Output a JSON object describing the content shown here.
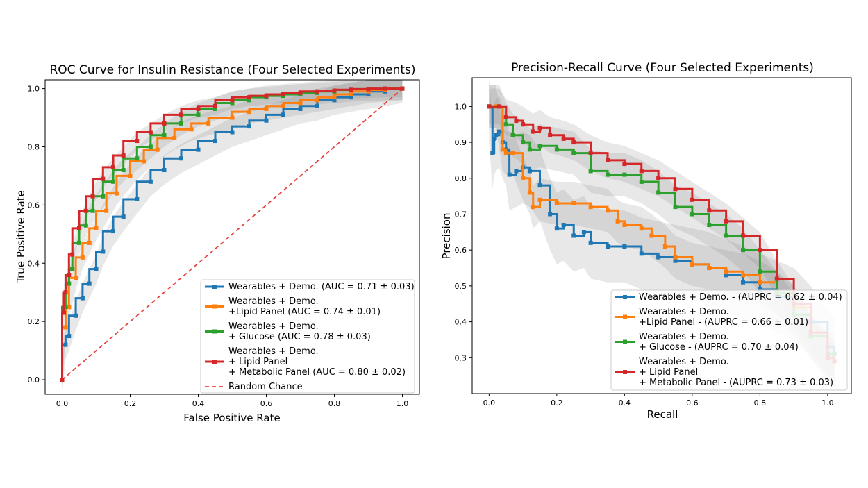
{
  "chart_data": [
    {
      "type": "line",
      "title": "ROC Curve for Insulin Resistance (Four Selected Experiments)",
      "xlabel": "False Positive Rate",
      "ylabel": "True Positive Rate",
      "xlim": [
        -0.05,
        1.05
      ],
      "ylim": [
        -0.05,
        1.03
      ],
      "xticks": [
        "0.0",
        "0.2",
        "0.4",
        "0.6",
        "0.8",
        "1.0"
      ],
      "yticks": [
        "0.0",
        "0.2",
        "0.4",
        "0.6",
        "0.8",
        "1.0"
      ],
      "legend_position": "lower-right",
      "series": [
        {
          "name": "Wearables + Demo. (AUC = 0.71 ± 0.03)",
          "legend_lines": [
            "Wearables + Demo. (AUC = 0.71 ± 0.03)"
          ],
          "color": "#1f77b4",
          "x": [
            0.0,
            0.01,
            0.02,
            0.04,
            0.06,
            0.08,
            0.1,
            0.12,
            0.15,
            0.18,
            0.22,
            0.26,
            0.3,
            0.35,
            0.4,
            0.45,
            0.5,
            0.55,
            0.6,
            0.65,
            0.7,
            0.75,
            0.8,
            0.85,
            0.9,
            0.95,
            1.0
          ],
          "y": [
            0.0,
            0.12,
            0.15,
            0.22,
            0.28,
            0.33,
            0.38,
            0.44,
            0.51,
            0.56,
            0.62,
            0.68,
            0.72,
            0.76,
            0.79,
            0.82,
            0.85,
            0.87,
            0.89,
            0.91,
            0.93,
            0.94,
            0.96,
            0.97,
            0.98,
            0.99,
            1.0
          ],
          "band": 0.05
        },
        {
          "name": "Wearables + Demo. +Lipid Panel (AUC = 0.74 ± 0.01)",
          "legend_lines": [
            "Wearables + Demo.",
            "+Lipid Panel (AUC = 0.74 ± 0.01)"
          ],
          "color": "#ff7f0e",
          "x": [
            0.0,
            0.01,
            0.02,
            0.04,
            0.06,
            0.08,
            0.1,
            0.13,
            0.16,
            0.2,
            0.24,
            0.28,
            0.33,
            0.38,
            0.43,
            0.5,
            0.55,
            0.6,
            0.65,
            0.7,
            0.75,
            0.8,
            0.85,
            0.9,
            0.95,
            1.0
          ],
          "y": [
            0.0,
            0.18,
            0.25,
            0.35,
            0.42,
            0.47,
            0.52,
            0.58,
            0.64,
            0.7,
            0.75,
            0.79,
            0.83,
            0.86,
            0.88,
            0.9,
            0.92,
            0.93,
            0.94,
            0.95,
            0.96,
            0.97,
            0.98,
            0.99,
            0.995,
            1.0
          ],
          "band": 0.04
        },
        {
          "name": "Wearables + Demo. + Glucose (AUC = 0.78 ± 0.03)",
          "legend_lines": [
            "Wearables + Demo.",
            " + Glucose (AUC = 0.78 ± 0.03)"
          ],
          "color": "#2ca02c",
          "x": [
            0.0,
            0.01,
            0.02,
            0.03,
            0.05,
            0.07,
            0.09,
            0.12,
            0.15,
            0.18,
            0.22,
            0.26,
            0.3,
            0.35,
            0.4,
            0.45,
            0.5,
            0.55,
            0.6,
            0.65,
            0.7,
            0.75,
            0.8,
            0.85,
            0.9,
            0.95,
            1.0
          ],
          "y": [
            0.0,
            0.25,
            0.33,
            0.38,
            0.47,
            0.53,
            0.58,
            0.63,
            0.68,
            0.72,
            0.76,
            0.8,
            0.84,
            0.88,
            0.91,
            0.93,
            0.95,
            0.96,
            0.97,
            0.975,
            0.98,
            0.985,
            0.99,
            0.995,
            0.998,
            1.0,
            1.0
          ],
          "band": 0.04
        },
        {
          "name": "Wearables + Demo. + Lipid Panel + Metabolic Panel (AUC = 0.80 ± 0.02)",
          "legend_lines": [
            "Wearables + Demo.",
            "+ Lipid Panel",
            "+ Metabolic Panel (AUC = 0.80 ± 0.02)"
          ],
          "color": "#d62728",
          "x": [
            0.0,
            0.005,
            0.01,
            0.02,
            0.03,
            0.05,
            0.07,
            0.09,
            0.12,
            0.15,
            0.18,
            0.22,
            0.26,
            0.3,
            0.35,
            0.4,
            0.45,
            0.5,
            0.55,
            0.6,
            0.65,
            0.7,
            0.75,
            0.8,
            0.85,
            0.9,
            0.95,
            1.0
          ],
          "y": [
            0.0,
            0.23,
            0.3,
            0.36,
            0.43,
            0.52,
            0.58,
            0.63,
            0.69,
            0.73,
            0.77,
            0.82,
            0.85,
            0.88,
            0.91,
            0.93,
            0.94,
            0.96,
            0.97,
            0.975,
            0.98,
            0.985,
            0.99,
            0.993,
            0.996,
            0.998,
            1.0,
            1.0
          ],
          "band": 0.03
        }
      ],
      "reference_line": {
        "name": "Random Chance",
        "color": "#e8423f",
        "x": [
          0,
          1
        ],
        "y": [
          0,
          1
        ]
      }
    },
    {
      "type": "line",
      "title": "Precision-Recall Curve (Four Selected Experiments)",
      "xlabel": "Recall",
      "ylabel": "Precision",
      "xlim": [
        -0.05,
        1.07
      ],
      "ylim": [
        0.2,
        1.08
      ],
      "xticks": [
        "0.0",
        "0.2",
        "0.4",
        "0.6",
        "0.8",
        "1.0"
      ],
      "yticks": [
        "0.3",
        "0.4",
        "0.5",
        "0.6",
        "0.7",
        "0.8",
        "0.9",
        "1.0"
      ],
      "legend_position": "lower-right",
      "series": [
        {
          "name": "Wearables + Demo. - (AUPRC = 0.62 ± 0.04)",
          "legend_lines": [
            "Wearables + Demo. - (AUPRC = 0.62 ± 0.04)"
          ],
          "color": "#1f77b4",
          "x": [
            0.0,
            0.01,
            0.015,
            0.02,
            0.03,
            0.04,
            0.05,
            0.06,
            0.08,
            0.1,
            0.12,
            0.15,
            0.18,
            0.2,
            0.22,
            0.25,
            0.28,
            0.3,
            0.35,
            0.4,
            0.45,
            0.5,
            0.55,
            0.6,
            0.65,
            0.7,
            0.75,
            0.8,
            0.85,
            0.9,
            0.95,
            1.0,
            1.02
          ],
          "y": [
            1.0,
            0.87,
            0.91,
            0.92,
            0.93,
            0.9,
            0.88,
            0.81,
            0.82,
            0.83,
            0.82,
            0.78,
            0.7,
            0.66,
            0.67,
            0.64,
            0.65,
            0.62,
            0.61,
            0.61,
            0.59,
            0.58,
            0.57,
            0.56,
            0.55,
            0.53,
            0.51,
            0.49,
            0.47,
            0.45,
            0.4,
            0.33,
            0.31
          ],
          "band": 0.1
        },
        {
          "name": "Wearables + Demo. +Lipid Panel - (AUPRC = 0.66 ± 0.01)",
          "legend_lines": [
            "Wearables + Demo.",
            "+Lipid Panel - (AUPRC = 0.66 ± 0.01)"
          ],
          "color": "#ff7f0e",
          "x": [
            0.0,
            0.02,
            0.04,
            0.05,
            0.07,
            0.1,
            0.12,
            0.13,
            0.15,
            0.2,
            0.25,
            0.3,
            0.35,
            0.38,
            0.4,
            0.45,
            0.48,
            0.52,
            0.55,
            0.6,
            0.65,
            0.7,
            0.75,
            0.8,
            0.85,
            0.9,
            0.95,
            1.0,
            1.02
          ],
          "y": [
            1.0,
            1.0,
            0.88,
            0.87,
            0.87,
            0.8,
            0.76,
            0.72,
            0.74,
            0.73,
            0.73,
            0.72,
            0.71,
            0.68,
            0.67,
            0.66,
            0.64,
            0.61,
            0.58,
            0.56,
            0.55,
            0.54,
            0.53,
            0.51,
            0.48,
            0.44,
            0.36,
            0.3,
            0.29
          ],
          "band": 0.06
        },
        {
          "name": "Wearables + Demo. + Glucose - (AUPRC = 0.70 ± 0.04)",
          "legend_lines": [
            "Wearables + Demo.",
            " + Glucose - (AUPRC = 0.70 ± 0.04)"
          ],
          "color": "#2ca02c",
          "x": [
            0.0,
            0.03,
            0.05,
            0.07,
            0.1,
            0.12,
            0.15,
            0.2,
            0.25,
            0.3,
            0.35,
            0.4,
            0.45,
            0.5,
            0.55,
            0.6,
            0.65,
            0.7,
            0.75,
            0.8,
            0.85,
            0.9,
            0.95,
            1.0,
            1.02
          ],
          "y": [
            1.0,
            1.0,
            0.95,
            0.92,
            0.9,
            0.88,
            0.89,
            0.88,
            0.87,
            0.82,
            0.81,
            0.81,
            0.79,
            0.76,
            0.72,
            0.7,
            0.67,
            0.64,
            0.6,
            0.54,
            0.48,
            0.42,
            0.36,
            0.31,
            0.31
          ],
          "band": 0.06
        },
        {
          "name": "Wearables + Demo. + Lipid Panel + Metabolic Panel - (AUPRC = 0.73 ± 0.03)",
          "legend_lines": [
            "Wearables + Demo.",
            "+ Lipid Panel",
            "+ Metabolic Panel - (AUPRC = 0.73 ± 0.03)"
          ],
          "color": "#d62728",
          "x": [
            0.0,
            0.03,
            0.05,
            0.08,
            0.1,
            0.13,
            0.15,
            0.18,
            0.22,
            0.25,
            0.3,
            0.35,
            0.4,
            0.45,
            0.5,
            0.55,
            0.6,
            0.65,
            0.7,
            0.75,
            0.8,
            0.85,
            0.9,
            0.95,
            1.0,
            1.02
          ],
          "y": [
            1.0,
            1.0,
            0.97,
            0.96,
            0.95,
            0.93,
            0.94,
            0.92,
            0.91,
            0.9,
            0.87,
            0.85,
            0.84,
            0.82,
            0.8,
            0.77,
            0.74,
            0.71,
            0.68,
            0.64,
            0.6,
            0.52,
            0.45,
            0.37,
            0.3,
            0.29
          ],
          "band": 0.05
        }
      ]
    }
  ]
}
